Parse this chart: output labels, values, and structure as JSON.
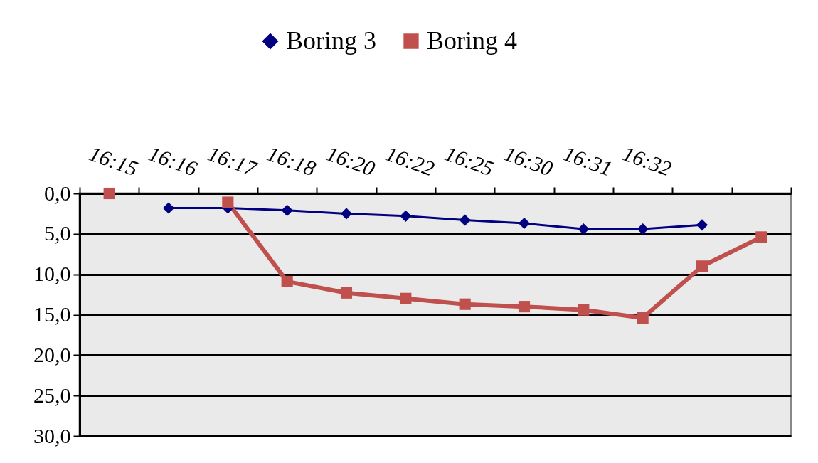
{
  "chart_data": {
    "type": "line",
    "categories": [
      "16:15",
      "16:16",
      "16:17",
      "16:18",
      "16:20",
      "16:22",
      "16:25",
      "16:30",
      "16:31",
      "16:32",
      null,
      null
    ],
    "series": [
      {
        "name": "Boring 3",
        "color": "#000080",
        "marker": "diamond",
        "values": [
          null,
          1.8,
          1.8,
          2.1,
          2.5,
          2.8,
          3.3,
          3.7,
          4.4,
          4.4,
          3.9,
          null
        ]
      },
      {
        "name": "Boring 4",
        "color": "#c0504d",
        "marker": "square",
        "values": [
          0.0,
          null,
          1.1,
          10.9,
          12.3,
          13.0,
          13.7,
          14.0,
          14.4,
          15.4,
          9.0,
          5.4
        ]
      }
    ],
    "ylim": [
      30,
      0
    ],
    "yticks": [
      {
        "value": 0,
        "label": "0,0"
      },
      {
        "value": 5,
        "label": "5,0"
      },
      {
        "value": 10,
        "label": "10,0"
      },
      {
        "value": 15,
        "label": "15,0"
      },
      {
        "value": 20,
        "label": "20,0"
      },
      {
        "value": 25,
        "label": "25,0"
      },
      {
        "value": 30,
        "label": "30,0"
      }
    ],
    "grid": "y",
    "legend": "top"
  }
}
